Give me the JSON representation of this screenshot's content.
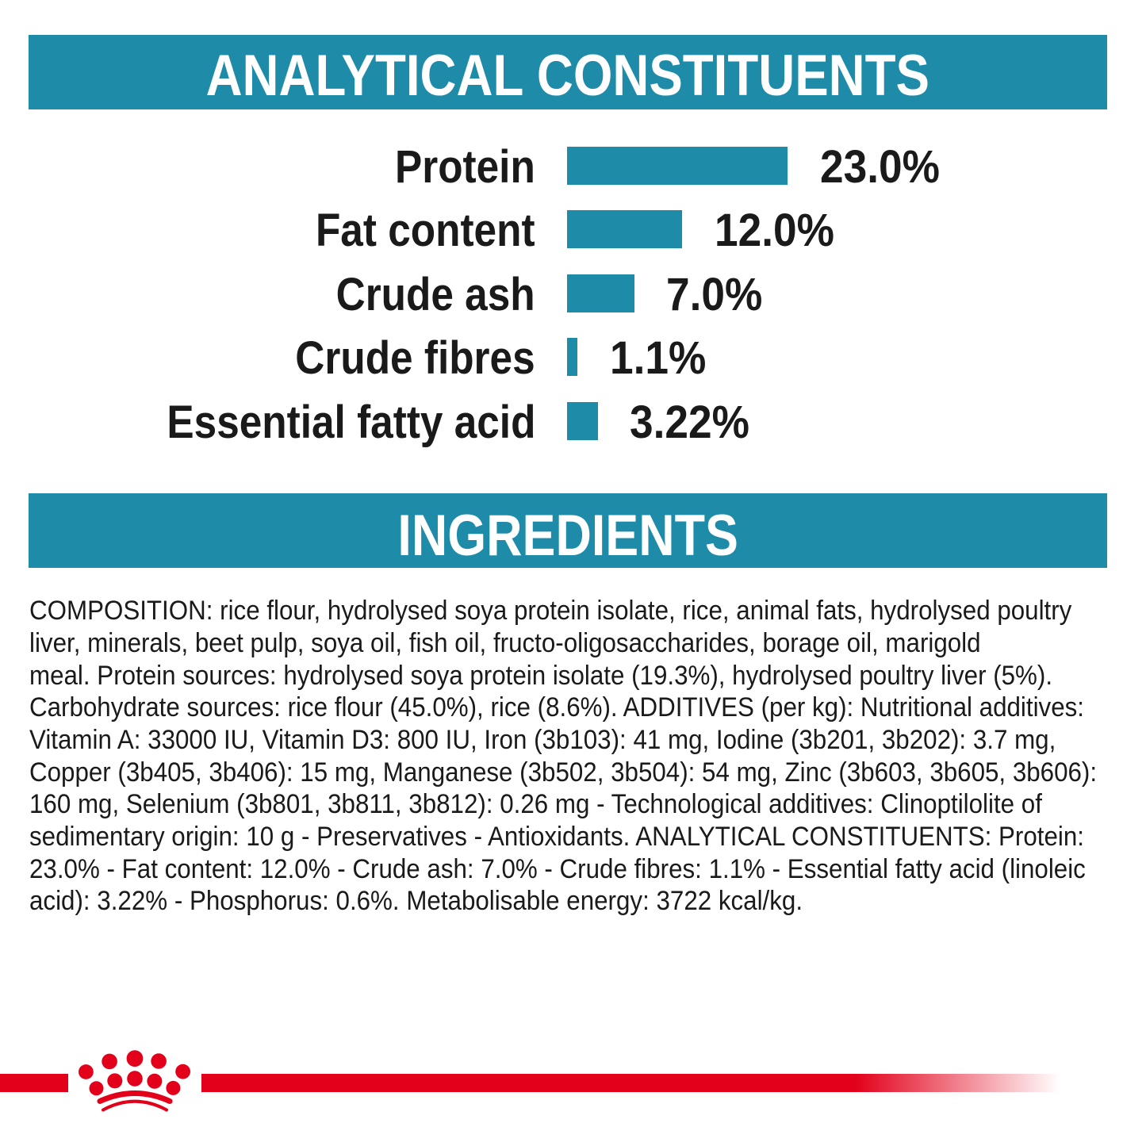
{
  "page": {
    "background": "#ffffff",
    "type": "pet-food-label-back-panel"
  },
  "colors": {
    "teal": "#1e8ca9",
    "red": "#e2001a",
    "text": "#1a1a1a",
    "banner_text": "#ffffff"
  },
  "analytical_section": {
    "title": "ANALYTICAL CONSTITUENTS"
  },
  "chart_data": {
    "type": "bar",
    "orientation": "horizontal",
    "title": "ANALYTICAL CONSTITUENTS",
    "categories": [
      "Protein",
      "Fat content",
      "Crude ash",
      "Crude fibres",
      "Essential fatty acid"
    ],
    "values": [
      23.0,
      12.0,
      7.0,
      1.1,
      3.22
    ],
    "value_labels": [
      "23.0%",
      "12.0%",
      "7.0%",
      "1.1%",
      "3.22%"
    ],
    "unit": "%",
    "xlim": [
      0,
      23
    ],
    "bar_color": "#1e8ca9",
    "grid": false,
    "legend": false
  },
  "ingredients_section": {
    "title": "INGREDIENTS",
    "lines": [
      "COMPOSITION: rice flour, hydrolysed soya protein isolate, rice, animal fats, hydrolysed poultry",
      "liver, minerals, beet pulp, soya oil, fish oil, fructo-oligosaccharides, borage oil, marigold",
      "meal. Protein sources: hydrolysed soya protein isolate (19.3%), hydrolysed poultry liver (5%).",
      "Carbohydrate sources: rice flour (45.0%), rice (8.6%). ADDITIVES (per kg): Nutritional additives:",
      "Vitamin A: 33000 IU, Vitamin D3: 800 IU, Iron (3b103): 41 mg, Iodine (3b201, 3b202): 3.7 mg,",
      "Copper (3b405, 3b406): 15 mg, Manganese (3b502, 3b504): 54 mg, Zinc (3b603, 3b605, 3b606):",
      "160 mg, Selenium (3b801, 3b811, 3b812): 0.26 mg - Technological additives: Clinoptilolite of",
      "sedimentary origin: 10 g - Preservatives - Antioxidants. ANALYTICAL CONSTITUENTS: Protein:",
      "23.0% - Fat content: 12.0% - Crude ash: 7.0% - Crude fibres: 1.1% - Essential fatty acid (linoleic",
      "acid): 3.22% - Phosphorus: 0.6%. Metabolisable energy: 3722 kcal/kg."
    ]
  },
  "footer": {
    "logo_icon": "royal-canin-crown",
    "logo_color": "#e2001a",
    "line_color": "#e2001a"
  }
}
